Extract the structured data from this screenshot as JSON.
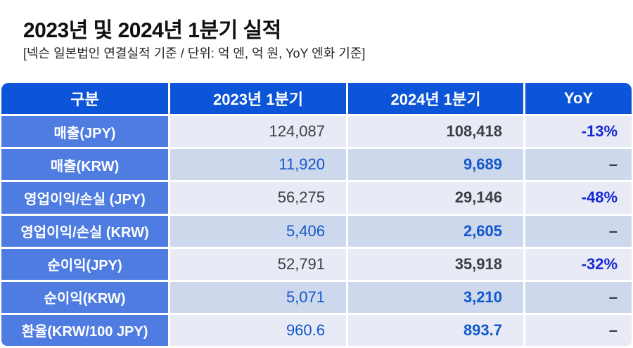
{
  "title": "2023년 및 2024년 1분기 실적",
  "subtitle": "[넥슨 일본법인 연결실적 기준 / 단위: 억 엔, 억 원, YoY 엔화 기준]",
  "colors": {
    "header_bg": "#0c54d8",
    "label_bg": "#4e7ce1",
    "row_light": "#e8ebf5",
    "row_dark": "#cdd8ec",
    "value_dark": "#3c3e44",
    "value_blue": "#1257cd",
    "yoy_blue": "#1727d4",
    "title_color": "#101010",
    "subtitle_color": "#222222"
  },
  "table": {
    "headers": [
      "구분",
      "2023년 1분기",
      "2024년 1분기",
      "YoY"
    ],
    "rows": [
      {
        "label": "매출(JPY)",
        "q1_2023": "124,087",
        "q1_2024": "108,418",
        "yoy": "-13%",
        "bg": "light",
        "value_color": "dark",
        "yoy_color": "blue"
      },
      {
        "label": "매출(KRW)",
        "q1_2023": "11,920",
        "q1_2024": "9,689",
        "yoy": "–",
        "bg": "dark",
        "value_color": "blue",
        "yoy_color": "dark"
      },
      {
        "label": "영업이익/손실 (JPY)",
        "q1_2023": "56,275",
        "q1_2024": "29,146",
        "yoy": "-48%",
        "bg": "light",
        "value_color": "dark",
        "yoy_color": "blue"
      },
      {
        "label": "영업이익/손실 (KRW)",
        "q1_2023": "5,406",
        "q1_2024": "2,605",
        "yoy": "–",
        "bg": "dark",
        "value_color": "blue",
        "yoy_color": "dark"
      },
      {
        "label": "순이익(JPY)",
        "q1_2023": "52,791",
        "q1_2024": "35,918",
        "yoy": "-32%",
        "bg": "light",
        "value_color": "dark",
        "yoy_color": "blue"
      },
      {
        "label": "순이익(KRW)",
        "q1_2023": "5,071",
        "q1_2024": "3,210",
        "yoy": "–",
        "bg": "dark",
        "value_color": "blue",
        "yoy_color": "dark"
      },
      {
        "label": "환율(KRW/100 JPY)",
        "q1_2023": "960.6",
        "q1_2024": "893.7",
        "yoy": "–",
        "bg": "light",
        "value_color": "blue",
        "yoy_color": "dark"
      }
    ]
  },
  "chart_data": {
    "type": "table",
    "title": "2023년 및 2024년 1분기 실적",
    "subtitle": "[넥슨 일본법인 연결실적 기준 / 단위: 억 엔, 억 원, YoY 엔화 기준]",
    "columns": [
      "구분",
      "2023년 1분기",
      "2024년 1분기",
      "YoY"
    ],
    "rows": [
      [
        "매출(JPY)",
        124087,
        108418,
        "-13%"
      ],
      [
        "매출(KRW)",
        11920,
        9689,
        null
      ],
      [
        "영업이익/손실 (JPY)",
        56275,
        29146,
        "-48%"
      ],
      [
        "영업이익/손실 (KRW)",
        5406,
        2605,
        null
      ],
      [
        "순이익(JPY)",
        52791,
        35918,
        "-32%"
      ],
      [
        "순이익(KRW)",
        5071,
        3210,
        null
      ],
      [
        "환율(KRW/100 JPY)",
        960.6,
        893.7,
        null
      ]
    ]
  }
}
